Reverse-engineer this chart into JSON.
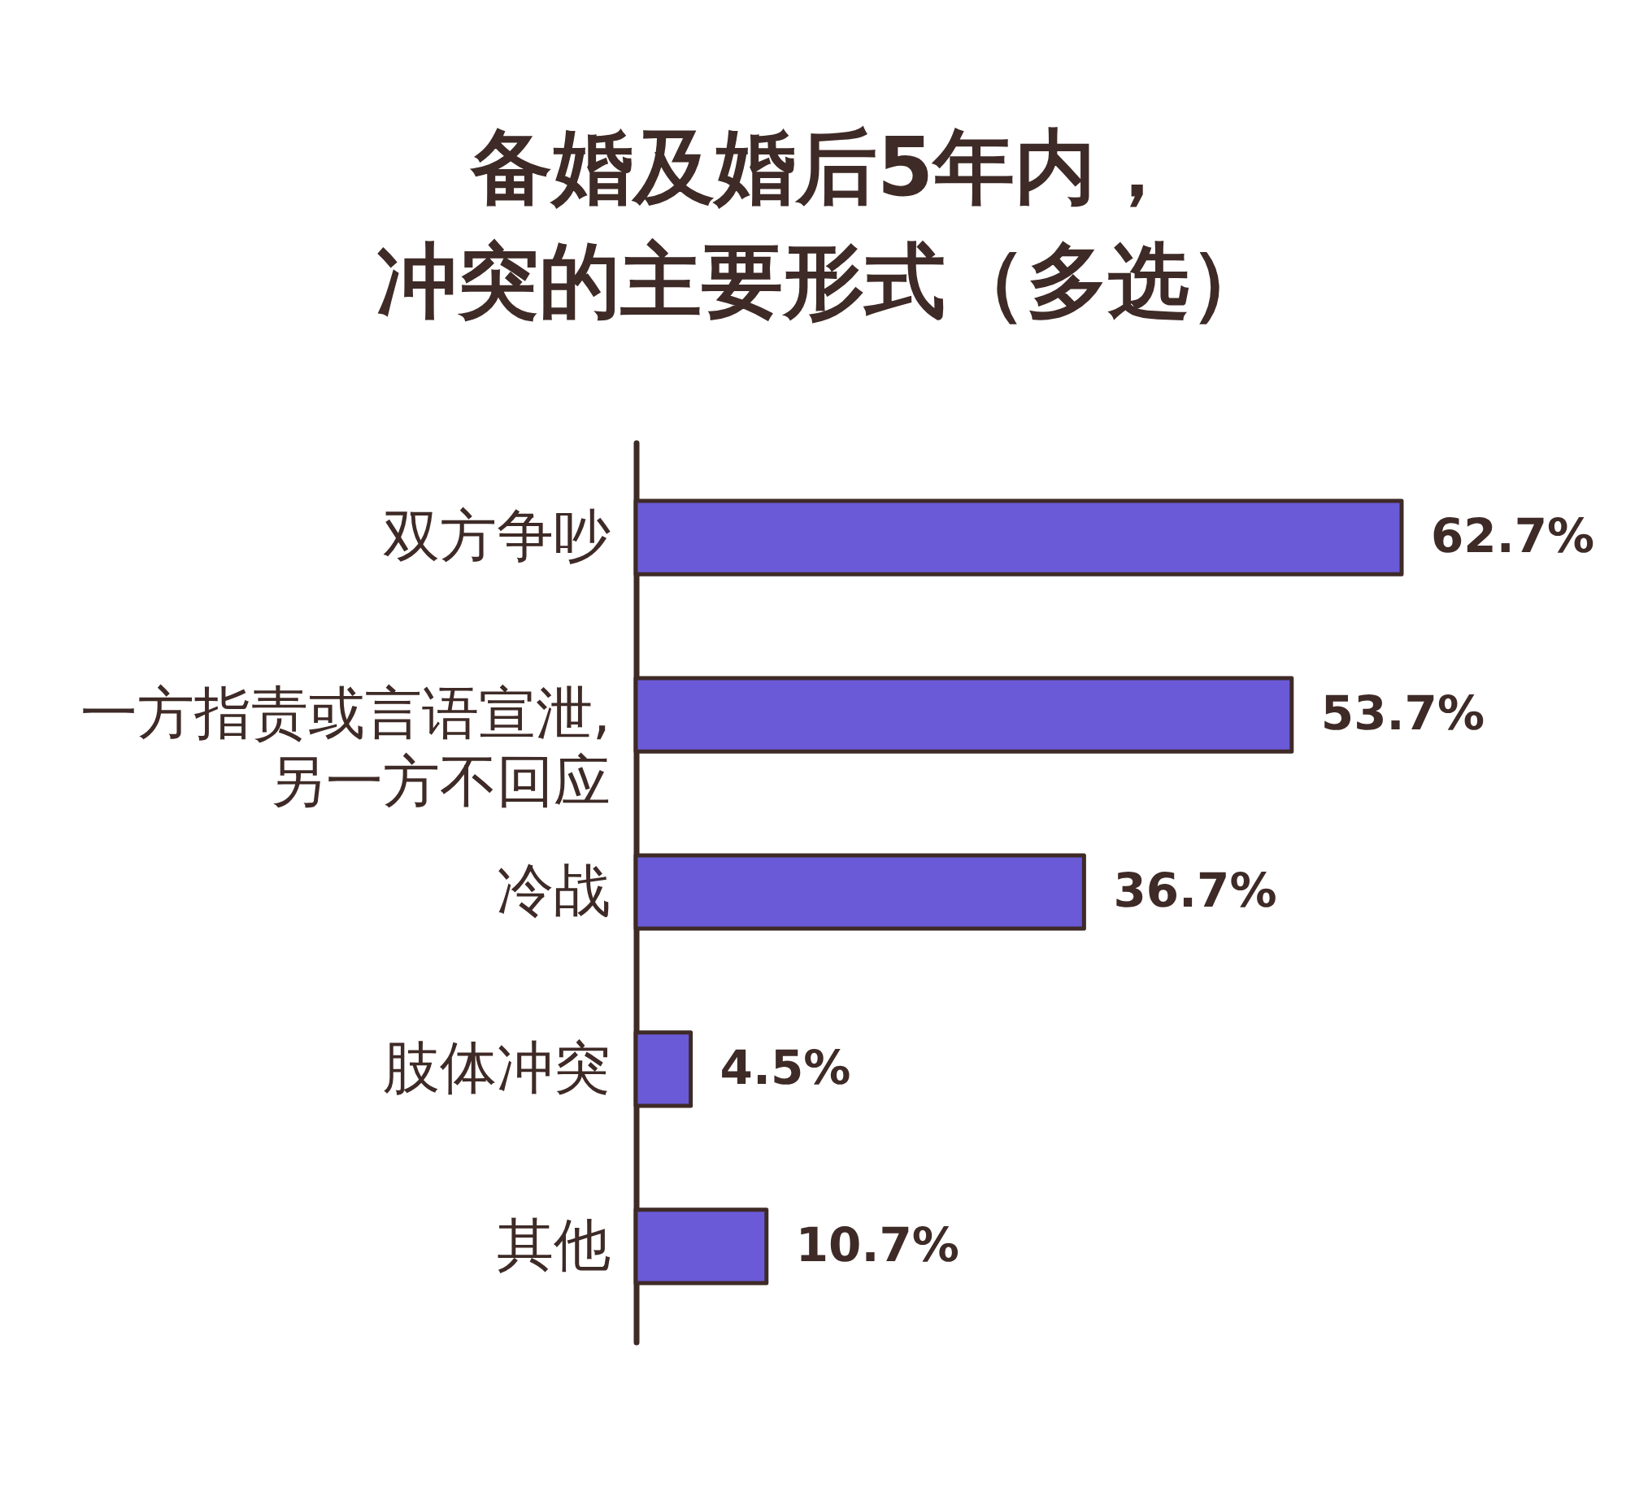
{
  "chart_data": {
    "type": "bar",
    "orientation": "horizontal",
    "title": "备婚及婚后5年内，冲突的主要形式（多选）",
    "categories": [
      "双方争吵",
      "一方指责或言语宣泄,\n另一方不回应",
      "冷战",
      "肢体冲突",
      "其他"
    ],
    "values": [
      62.7,
      53.7,
      36.7,
      4.5,
      10.7
    ],
    "value_labels": [
      "62.7%",
      "53.7%",
      "36.7%",
      "4.5%",
      "10.7%"
    ],
    "color": "#6a5ad8",
    "tick_labels": "y"
  }
}
